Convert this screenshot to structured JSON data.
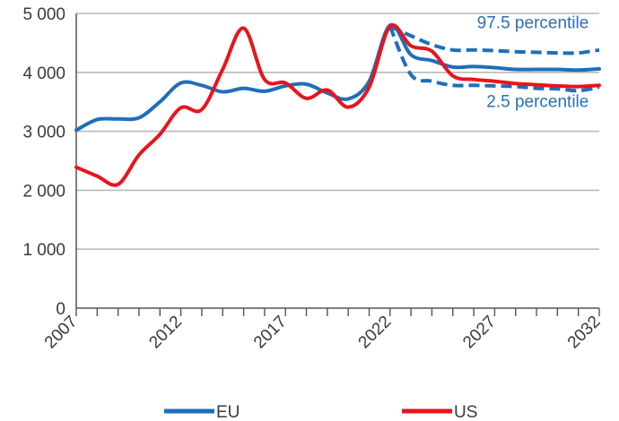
{
  "chart_data": {
    "type": "line",
    "title": "",
    "xlabel": "",
    "ylabel": "",
    "xlim": [
      2007,
      2032
    ],
    "ylim": [
      0,
      5000
    ],
    "x_ticks": [
      2007,
      2012,
      2017,
      2022,
      2027,
      2032
    ],
    "x_tick_labels": [
      "2007",
      "2012",
      "2017",
      "2022",
      "2027",
      "2032"
    ],
    "y_ticks": [
      0,
      1000,
      2000,
      3000,
      4000,
      5000
    ],
    "y_tick_labels": [
      "0",
      "1 000",
      "2 000",
      "3 000",
      "4 000",
      "5 000"
    ],
    "grid": "horizontal",
    "legend_position": "bottom",
    "colors": {
      "EU": "#1f6fb8",
      "US": "#e8141c",
      "grid": "#b9b9b9",
      "annotation": "#2a6fb5"
    },
    "series": [
      {
        "name": "EU",
        "color": "#1f6fb8",
        "style": "solid",
        "x": [
          2007,
          2008,
          2009,
          2010,
          2011,
          2012,
          2013,
          2014,
          2015,
          2016,
          2017,
          2018,
          2019,
          2020,
          2021,
          2022,
          2023,
          2024,
          2025,
          2026,
          2027,
          2028,
          2029,
          2030,
          2031,
          2032
        ],
        "y": [
          3020,
          3200,
          3210,
          3230,
          3500,
          3820,
          3780,
          3670,
          3730,
          3680,
          3770,
          3800,
          3650,
          3550,
          3850,
          4800,
          4300,
          4200,
          4090,
          4100,
          4080,
          4050,
          4050,
          4050,
          4040,
          4060
        ]
      },
      {
        "name": "US",
        "color": "#e8141c",
        "style": "solid",
        "x": [
          2007,
          2008,
          2009,
          2010,
          2011,
          2012,
          2013,
          2014,
          2015,
          2016,
          2017,
          2018,
          2019,
          2020,
          2021,
          2022,
          2023,
          2024,
          2025,
          2026,
          2027,
          2028,
          2029,
          2030,
          2031,
          2032
        ],
        "y": [
          2390,
          2240,
          2100,
          2600,
          2950,
          3400,
          3370,
          4050,
          4750,
          3880,
          3820,
          3560,
          3700,
          3410,
          3750,
          4780,
          4450,
          4360,
          3940,
          3880,
          3850,
          3810,
          3790,
          3770,
          3760,
          3780
        ]
      },
      {
        "color": "#1f6fb8",
        "style": "dashed",
        "x": [
          2022,
          2023,
          2024,
          2025,
          2026,
          2027,
          2028,
          2029,
          2030,
          2031,
          2032
        ],
        "y": [
          4780,
          4620,
          4470,
          4380,
          4380,
          4370,
          4350,
          4340,
          4330,
          4330,
          4380
        ]
      },
      {
        "color": "#1f6fb8",
        "style": "dashed",
        "x": [
          2022,
          2023,
          2024,
          2025,
          2026,
          2027,
          2028,
          2029,
          2030,
          2031,
          2032
        ],
        "y": [
          4780,
          3960,
          3850,
          3780,
          3780,
          3770,
          3760,
          3730,
          3720,
          3690,
          3750
        ]
      }
    ],
    "annotations": [
      {
        "text": "97.5 percentile",
        "x": 2031.5,
        "y": 4750
      },
      {
        "text": "2.5 percentile",
        "x": 2031.5,
        "y": 3410
      }
    ],
    "legend": [
      {
        "label": "EU",
        "color": "#1f6fb8"
      },
      {
        "label": "US",
        "color": "#e8141c"
      }
    ]
  }
}
